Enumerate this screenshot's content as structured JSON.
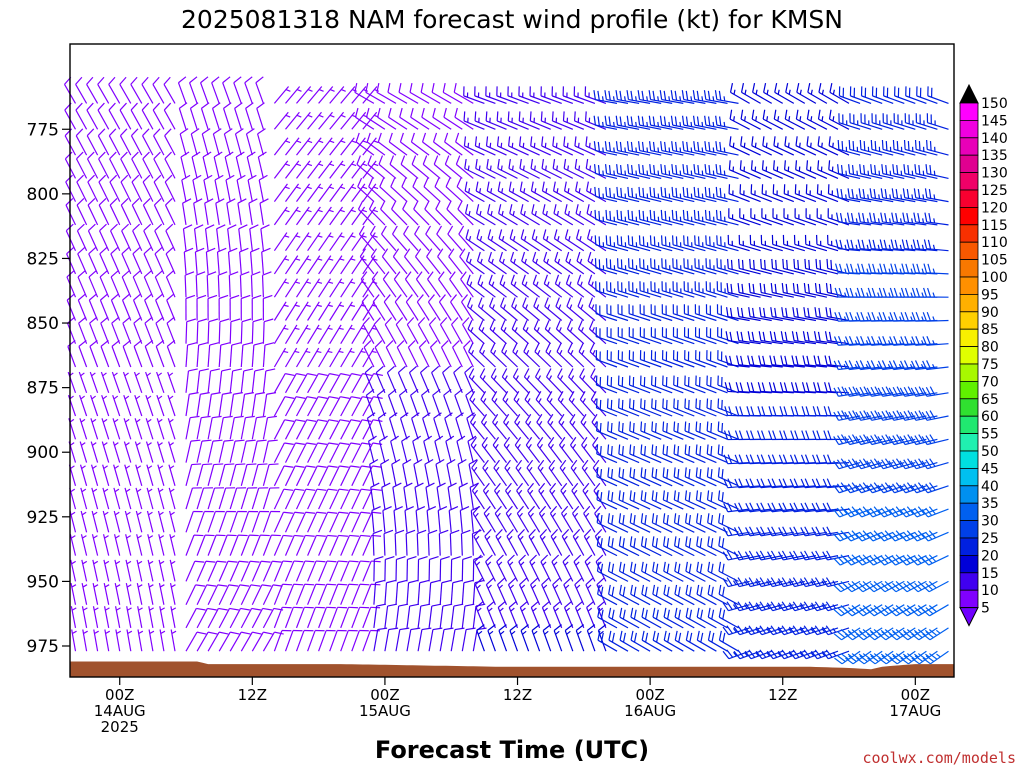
{
  "chart_data": {
    "type": "wind-barb-time-height",
    "title": "2025081318 NAM forecast wind profile (kt) for KMSN",
    "xlabel": "Forecast Time (UTC)",
    "ylabel": "",
    "credit": "coolwx.com/models",
    "y_axis": {
      "unit": "hPa",
      "inverted": true,
      "range": [
        987,
        742
      ],
      "ticks": [
        775,
        800,
        825,
        850,
        875,
        900,
        925,
        950,
        975
      ]
    },
    "x_axis": {
      "unit": "hours from 2025-08-14 00Z",
      "range": [
        -4.5,
        75.5
      ],
      "ticks": [
        {
          "hour": 0,
          "lines": [
            "00Z",
            "14AUG",
            "2025"
          ]
        },
        {
          "hour": 12,
          "lines": [
            "12Z"
          ]
        },
        {
          "hour": 24,
          "lines": [
            "00Z",
            "15AUG"
          ]
        },
        {
          "hour": 36,
          "lines": [
            "12Z"
          ]
        },
        {
          "hour": 48,
          "lines": [
            "00Z",
            "16AUG"
          ]
        },
        {
          "hour": 60,
          "lines": [
            "12Z"
          ]
        },
        {
          "hour": 72,
          "lines": [
            "00Z",
            "17AUG"
          ]
        }
      ]
    },
    "forecast_hours": {
      "start": -4,
      "end": 75,
      "step": 1
    },
    "pressure_levels_hPa": [
      765,
      775,
      785,
      794,
      803,
      812,
      822,
      831,
      840,
      849,
      858,
      867,
      877,
      886,
      895,
      904,
      913,
      922,
      931,
      940,
      950,
      959,
      968,
      977
    ],
    "wind_kt_by_period": [
      {
        "hours": "-4 to 5",
        "low_levels": {
          "speed": 7,
          "from_deg": 350
        },
        "upper_levels": {
          "speed": 8,
          "from_deg": 330
        }
      },
      {
        "hours": "6 to 13",
        "low_levels": {
          "speed": 8,
          "from_deg": 30
        },
        "upper_levels": {
          "speed": 8,
          "from_deg": 340
        }
      },
      {
        "hours": "14 to 22",
        "low_levels": {
          "speed": 8,
          "from_deg": 20
        },
        "upper_levels": {
          "speed": 7,
          "from_deg": 40
        }
      },
      {
        "hours": "23 to 32",
        "low_levels": {
          "speed": 12,
          "from_deg": 10
        },
        "upper_levels": {
          "speed": 8,
          "from_deg": 300
        }
      },
      {
        "hours": "33 to 44",
        "low_levels": {
          "speed": 15,
          "from_deg": 340
        },
        "upper_levels": {
          "speed": 14,
          "from_deg": 290
        }
      },
      {
        "hours": "45 to 56",
        "low_levels": {
          "speed": 20,
          "from_deg": 300
        },
        "upper_levels": {
          "speed": 24,
          "from_deg": 280
        }
      },
      {
        "hours": "57 to 66",
        "low_levels": {
          "speed": 24,
          "from_deg": 250
        },
        "upper_levels": {
          "speed": 15,
          "from_deg": 300
        }
      },
      {
        "hours": "67 to 75",
        "low_levels": {
          "speed": 33,
          "from_deg": 235
        },
        "upper_levels": {
          "speed": 22,
          "from_deg": 290
        }
      }
    ],
    "surface_pressure_hPa": [
      {
        "hour": -4,
        "p": 981
      },
      {
        "hour": 7,
        "p": 981
      },
      {
        "hour": 8,
        "p": 982
      },
      {
        "hour": 20,
        "p": 982
      },
      {
        "hour": 27,
        "p": 982.5
      },
      {
        "hour": 34,
        "p": 983
      },
      {
        "hour": 48,
        "p": 983
      },
      {
        "hour": 62,
        "p": 983
      },
      {
        "hour": 66,
        "p": 983.5
      },
      {
        "hour": 68,
        "p": 984
      },
      {
        "hour": 69,
        "p": 983
      },
      {
        "hour": 72,
        "p": 982
      },
      {
        "hour": 75,
        "p": 982
      }
    ],
    "colorbar": {
      "unit": "kt",
      "labels": [
        150,
        145,
        140,
        135,
        130,
        125,
        120,
        115,
        110,
        105,
        100,
        95,
        90,
        85,
        80,
        75,
        70,
        65,
        60,
        55,
        50,
        45,
        40,
        35,
        30,
        25,
        20,
        15,
        10,
        5
      ],
      "colors": [
        "#ff00ff",
        "#f000e0",
        "#e800b8",
        "#e00090",
        "#f00068",
        "#f80030",
        "#ff0000",
        "#f83000",
        "#f85800",
        "#f87800",
        "#ff9000",
        "#ffb000",
        "#ffd000",
        "#f8f000",
        "#e0ff00",
        "#a8f800",
        "#60f000",
        "#30e030",
        "#20e870",
        "#20f0b0",
        "#00e0e0",
        "#00c0f0",
        "#0090f0",
        "#0060f0",
        "#0040e8",
        "#0020e0",
        "#0000d8",
        "#4000f0",
        "#8000ff"
      ],
      "top_color": "#000000",
      "bottom_color": "#7000ff"
    },
    "colors": {
      "terrain": "#a0522d"
    }
  }
}
